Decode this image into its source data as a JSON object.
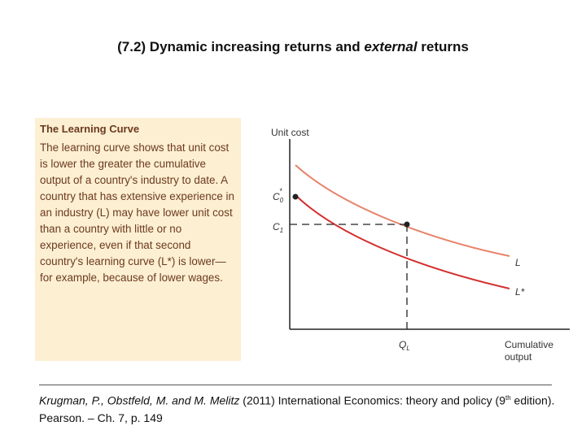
{
  "title": {
    "prefix": "(7.2) Dynamic increasing returns and ",
    "italic": "external",
    "suffix": " returns"
  },
  "box": {
    "heading": "The Learning Curve",
    "text": "The learning curve shows that unit cost is lower the greater the cumulative output of a country's industry to date. A country that has extensive experience in an industry (L) may have lower unit cost than a country with little or no experience, even if that second country's learning curve (L*) is lower—for example, because of lower wages."
  },
  "diagram": {
    "y_axis_label": "Unit cost",
    "x_axis_label_line1": "Cumulative",
    "x_axis_label_line2": "output",
    "c0_label": "C",
    "c0_sub": "0",
    "c0_sup": "*",
    "c1_label": "C",
    "c1_sub": "1",
    "ql_label": "Q",
    "ql_sub": "L",
    "curve_L_label": "L",
    "curve_Lstar_label": "L*",
    "curve_L_color": "#e8836a",
    "curve_Lstar_color": "#d42e2e"
  },
  "citation": {
    "authors": "Krugman, P., Obstfeld, M. and M. Melitz",
    "year": " (2011) International Economics: theory and policy (9",
    "edition_sup": "th",
    "rest": " edition). Pearson. – Ch. 7, p. 149"
  }
}
